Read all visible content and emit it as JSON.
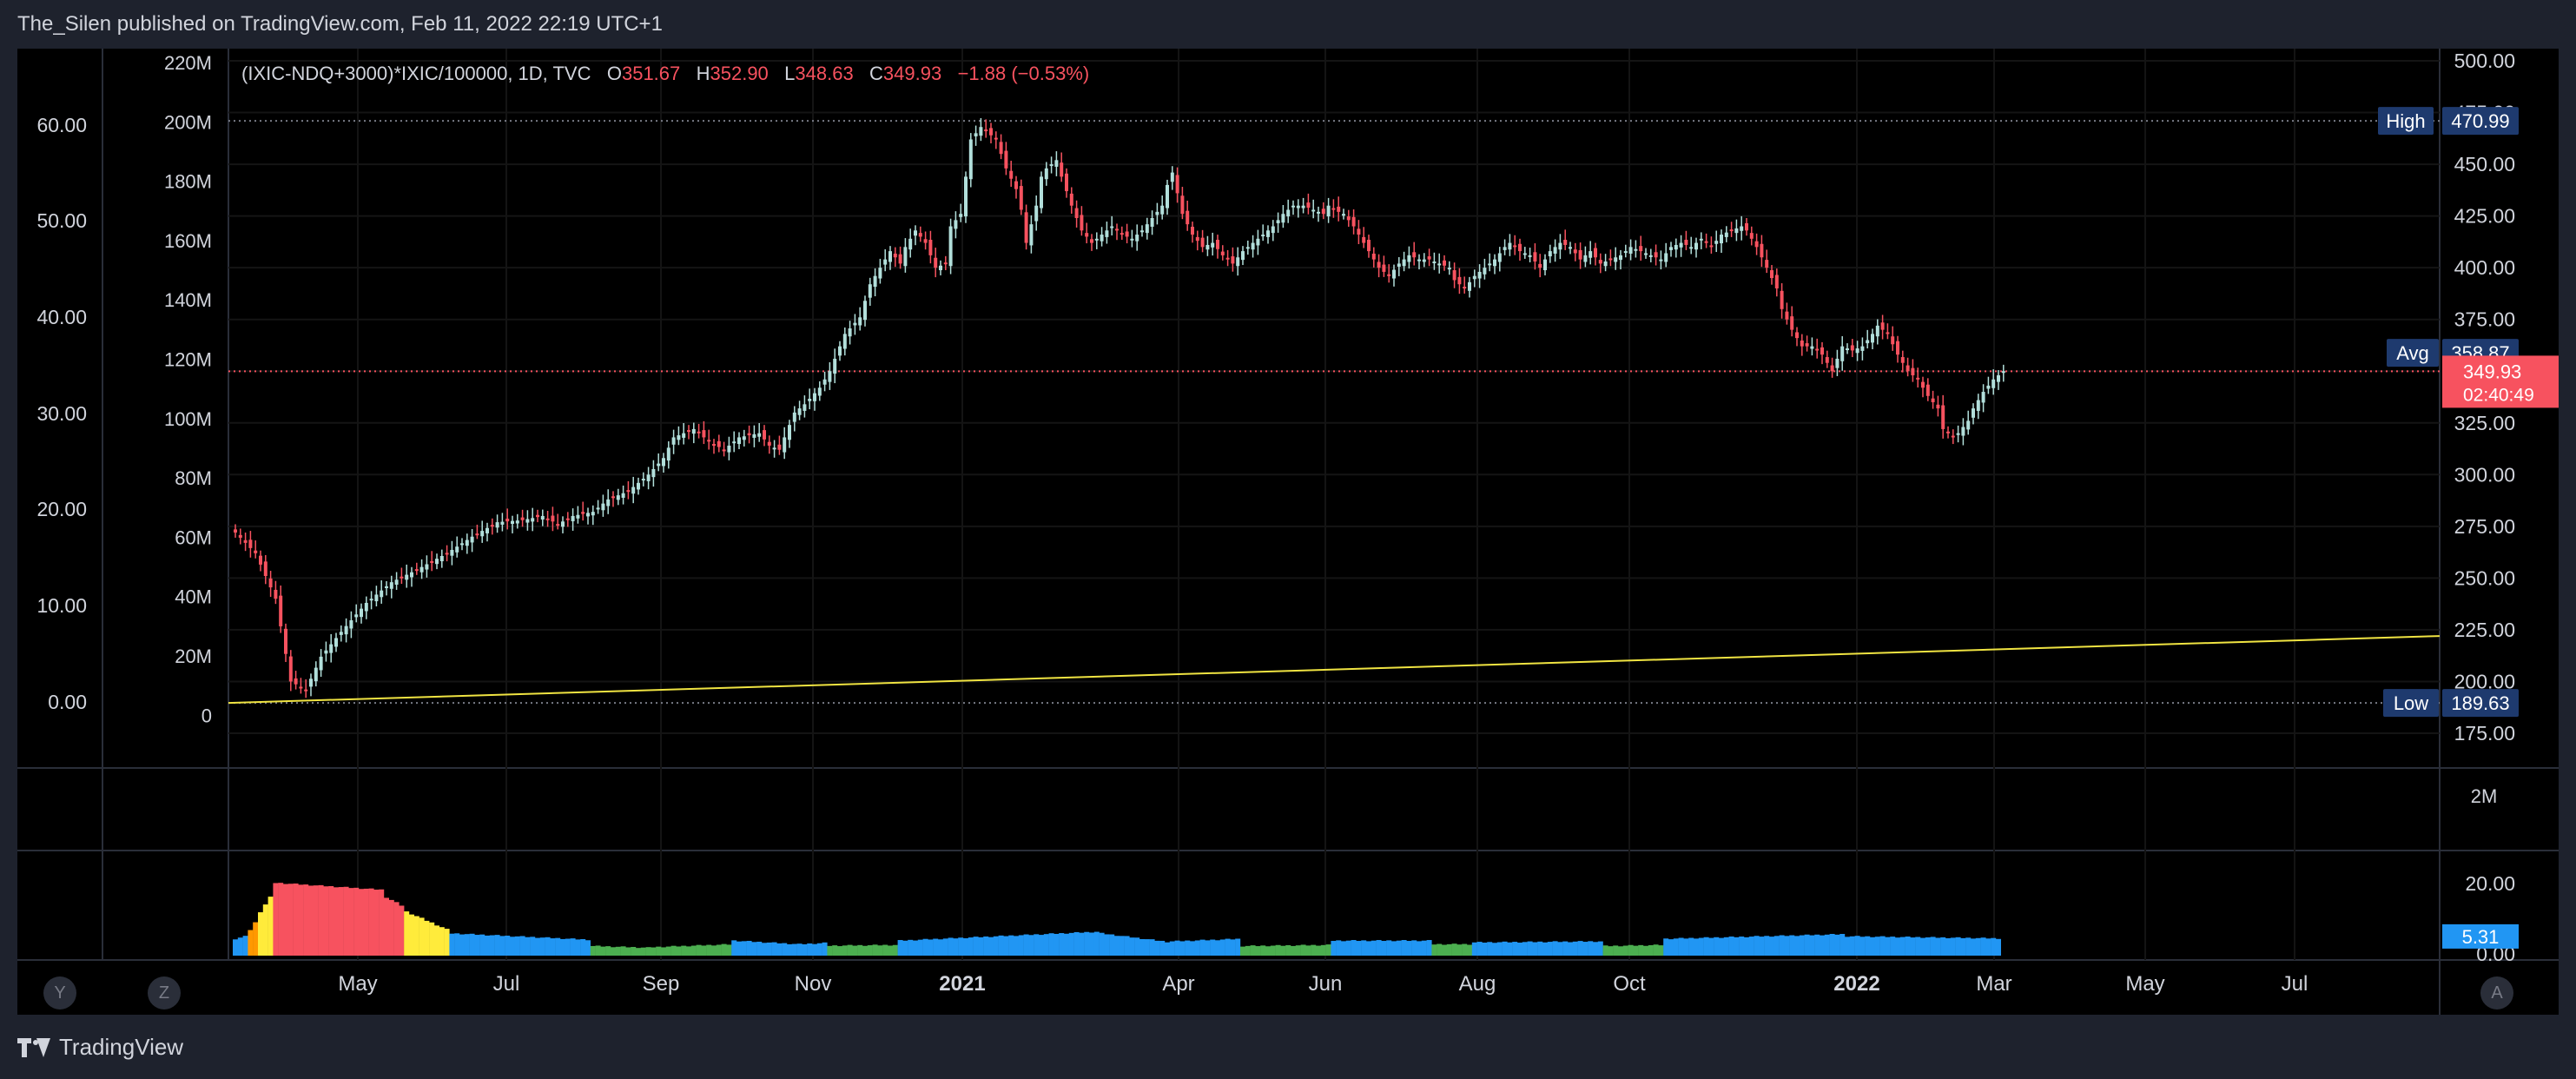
{
  "header": {
    "publisher": "The_Silen published on TradingView.com, Feb 11, 2022 22:19 UTC+1"
  },
  "footer": {
    "brand": "TradingView"
  },
  "legend": {
    "symbol": "(IXIC-NDQ+3000)*IXIC/100000, 1D, TVC",
    "open_label": "O",
    "open": "351.67",
    "high_label": "H",
    "high": "352.90",
    "low_label": "L",
    "low": "348.63",
    "close_label": "C",
    "close": "349.93",
    "change": "−1.88 (−0.53%)"
  },
  "buttons": {
    "y": "Y",
    "z": "Z",
    "a": "A"
  },
  "colors": {
    "up": "#26a69a",
    "up_candle": "#b2dfdb",
    "down": "#f7525f",
    "price_line": "#f7525f",
    "badge_bg": "#1e3a6e",
    "trendline": "#f0e442",
    "osc_blue": "#2196f3",
    "osc_green": "#4caf50",
    "osc_red": "#f7525f",
    "osc_yellow": "#ffeb3b",
    "osc_orange": "#ff9800"
  },
  "chart_data": {
    "type": "candlestick",
    "title": "",
    "x_tick_labels": [
      "May",
      "Jul",
      "Sep",
      "Nov",
      "2021",
      "Apr",
      "Jun",
      "Aug",
      "Oct",
      "2022",
      "Mar",
      "May",
      "Jul"
    ],
    "right_axis": {
      "ticks": [
        "500.00",
        "475.00",
        "450.00",
        "425.00",
        "400.00",
        "375.00",
        "350.00",
        "325.00",
        "300.00",
        "275.00",
        "250.00",
        "225.00",
        "200.00",
        "175.00"
      ],
      "ylim": [
        175,
        500
      ]
    },
    "left_axis_outer": {
      "ticks": [
        "60.00",
        "50.00",
        "40.00",
        "30.00",
        "20.00",
        "10.00",
        "0.00"
      ]
    },
    "left_axis_inner": {
      "ticks": [
        "220M",
        "200M",
        "180M",
        "160M",
        "140M",
        "120M",
        "100M",
        "80M",
        "60M",
        "40M",
        "20M",
        "0"
      ]
    },
    "volume_pane": {
      "tick": "2M"
    },
    "badges": {
      "high": {
        "label": "High",
        "value": "470.99"
      },
      "avg": {
        "label": "Avg",
        "value": "358.87"
      },
      "low": {
        "label": "Low",
        "value": "189.63"
      },
      "last": {
        "value": "349.93",
        "countdown": "02:40:49"
      }
    },
    "path_points": [
      [
        0,
        272
      ],
      [
        4,
        262
      ],
      [
        8,
        240
      ],
      [
        11,
        200
      ],
      [
        14,
        196
      ],
      [
        17,
        212
      ],
      [
        21,
        224
      ],
      [
        26,
        238
      ],
      [
        31,
        248
      ],
      [
        36,
        254
      ],
      [
        42,
        262
      ],
      [
        47,
        270
      ],
      [
        52,
        277
      ],
      [
        57,
        278
      ],
      [
        61,
        280
      ],
      [
        64,
        276
      ],
      [
        67,
        280
      ],
      [
        71,
        282
      ],
      [
        74,
        288
      ],
      [
        78,
        292
      ],
      [
        82,
        300
      ],
      [
        85,
        308
      ],
      [
        87,
        318
      ],
      [
        91,
        322
      ],
      [
        94,
        316
      ],
      [
        97,
        312
      ],
      [
        100,
        318
      ],
      [
        104,
        320
      ],
      [
        106,
        314
      ],
      [
        108,
        312
      ],
      [
        111,
        330
      ],
      [
        113,
        334
      ],
      [
        116,
        342
      ],
      [
        118,
        350
      ],
      [
        121,
        368
      ],
      [
        124,
        376
      ],
      [
        126,
        392
      ],
      [
        128,
        400
      ],
      [
        130,
        408
      ],
      [
        132,
        402
      ],
      [
        133,
        410
      ],
      [
        135,
        418
      ],
      [
        137,
        412
      ],
      [
        139,
        400
      ],
      [
        141,
        402
      ],
      [
        142,
        420
      ],
      [
        144,
        426
      ],
      [
        146,
        462
      ],
      [
        148,
        468
      ],
      [
        151,
        462
      ],
      [
        153,
        448
      ],
      [
        155,
        438
      ],
      [
        156,
        428
      ],
      [
        157,
        412
      ],
      [
        159,
        430
      ],
      [
        160,
        444
      ],
      [
        161,
        448
      ],
      [
        163,
        452
      ],
      [
        164,
        444
      ],
      [
        166,
        430
      ],
      [
        168,
        418
      ],
      [
        170,
        412
      ],
      [
        172,
        416
      ],
      [
        174,
        420
      ],
      [
        176,
        416
      ],
      [
        178,
        414
      ],
      [
        180,
        418
      ],
      [
        182,
        424
      ],
      [
        184,
        430
      ],
      [
        185,
        440
      ],
      [
        186,
        446
      ],
      [
        187,
        436
      ],
      [
        188,
        426
      ],
      [
        190,
        416
      ],
      [
        192,
        410
      ],
      [
        194,
        412
      ],
      [
        196,
        406
      ],
      [
        198,
        402
      ],
      [
        200,
        408
      ],
      [
        202,
        412
      ],
      [
        204,
        416
      ],
      [
        206,
        420
      ],
      [
        208,
        426
      ],
      [
        210,
        430
      ],
      [
        212,
        430
      ],
      [
        214,
        428
      ],
      [
        216,
        426
      ],
      [
        217,
        430
      ],
      [
        218,
        428
      ],
      [
        220,
        426
      ],
      [
        222,
        420
      ],
      [
        224,
        412
      ],
      [
        225,
        408
      ],
      [
        227,
        400
      ],
      [
        229,
        396
      ],
      [
        231,
        402
      ],
      [
        233,
        406
      ],
      [
        235,
        404
      ],
      [
        237,
        404
      ],
      [
        239,
        402
      ],
      [
        241,
        400
      ],
      [
        242,
        394
      ],
      [
        244,
        390
      ],
      [
        246,
        396
      ],
      [
        248,
        400
      ],
      [
        250,
        404
      ],
      [
        252,
        410
      ],
      [
        253,
        412
      ],
      [
        255,
        408
      ],
      [
        257,
        406
      ],
      [
        259,
        400
      ],
      [
        261,
        408
      ],
      [
        263,
        412
      ],
      [
        265,
        410
      ],
      [
        267,
        404
      ],
      [
        269,
        408
      ],
      [
        271,
        402
      ],
      [
        273,
        404
      ],
      [
        275,
        406
      ],
      [
        277,
        410
      ],
      [
        279,
        408
      ],
      [
        281,
        406
      ],
      [
        283,
        404
      ],
      [
        285,
        410
      ],
      [
        287,
        412
      ],
      [
        289,
        410
      ],
      [
        291,
        414
      ],
      [
        293,
        410
      ],
      [
        295,
        416
      ],
      [
        297,
        418
      ],
      [
        299,
        420
      ],
      [
        300,
        418
      ],
      [
        302,
        410
      ],
      [
        304,
        400
      ],
      [
        306,
        390
      ],
      [
        307,
        380
      ],
      [
        309,
        370
      ],
      [
        311,
        362
      ],
      [
        313,
        362
      ],
      [
        315,
        358
      ],
      [
        317,
        350
      ],
      [
        319,
        362
      ],
      [
        321,
        360
      ],
      [
        323,
        362
      ],
      [
        325,
        368
      ],
      [
        326,
        372
      ],
      [
        328,
        368
      ],
      [
        330,
        358
      ],
      [
        332,
        350
      ],
      [
        334,
        346
      ],
      [
        336,
        338
      ],
      [
        338,
        332
      ],
      [
        339,
        322
      ],
      [
        341,
        318
      ],
      [
        342,
        320
      ],
      [
        344,
        326
      ],
      [
        345,
        332
      ],
      [
        347,
        340
      ],
      [
        349,
        346
      ],
      [
        351,
        350
      ]
    ],
    "oscillator": {
      "ticks": [
        "20.00",
        "0.00"
      ],
      "last_value": "5.31",
      "ylim": [
        0,
        25
      ],
      "segments": [
        {
          "from": 0,
          "to": 3,
          "color": "blue",
          "start": 4.5,
          "end": 5.5
        },
        {
          "from": 3,
          "to": 5,
          "color": "orange",
          "start": 7,
          "end": 11
        },
        {
          "from": 5,
          "to": 8,
          "color": "yellow",
          "start": 12,
          "end": 18
        },
        {
          "from": 8,
          "to": 30,
          "color": "red",
          "start": 20,
          "end": 18
        },
        {
          "from": 30,
          "to": 34,
          "color": "red",
          "start": 16,
          "end": 13
        },
        {
          "from": 34,
          "to": 43,
          "color": "yellow",
          "start": 12,
          "end": 6.5
        },
        {
          "from": 43,
          "to": 71,
          "color": "blue",
          "start": 6,
          "end": 4.2
        },
        {
          "from": 71,
          "to": 83,
          "color": "green",
          "start": 2.5,
          "end": 2
        },
        {
          "from": 83,
          "to": 99,
          "color": "green",
          "start": 2.2,
          "end": 3
        },
        {
          "from": 99,
          "to": 112,
          "color": "blue",
          "start": 4,
          "end": 3
        },
        {
          "from": 112,
          "to": 118,
          "color": "blue",
          "start": 3,
          "end": 3.4
        },
        {
          "from": 118,
          "to": 132,
          "color": "green",
          "start": 2.6,
          "end": 2.8
        },
        {
          "from": 132,
          "to": 172,
          "color": "blue",
          "start": 4,
          "end": 6.5
        },
        {
          "from": 172,
          "to": 186,
          "color": "blue",
          "start": 6,
          "end": 3.5
        },
        {
          "from": 186,
          "to": 200,
          "color": "blue",
          "start": 3.8,
          "end": 4.5
        },
        {
          "from": 200,
          "to": 218,
          "color": "green",
          "start": 2.5,
          "end": 2.8
        },
        {
          "from": 218,
          "to": 238,
          "color": "blue",
          "start": 4,
          "end": 4
        },
        {
          "from": 238,
          "to": 246,
          "color": "green",
          "start": 3,
          "end": 3
        },
        {
          "from": 246,
          "to": 272,
          "color": "blue",
          "start": 3.5,
          "end": 3.8
        },
        {
          "from": 272,
          "to": 284,
          "color": "green",
          "start": 2.5,
          "end": 2.8
        },
        {
          "from": 284,
          "to": 320,
          "color": "blue",
          "start": 4.5,
          "end": 5.8
        },
        {
          "from": 320,
          "to": 351,
          "color": "blue",
          "start": 5.2,
          "end": 4.6
        }
      ]
    }
  }
}
